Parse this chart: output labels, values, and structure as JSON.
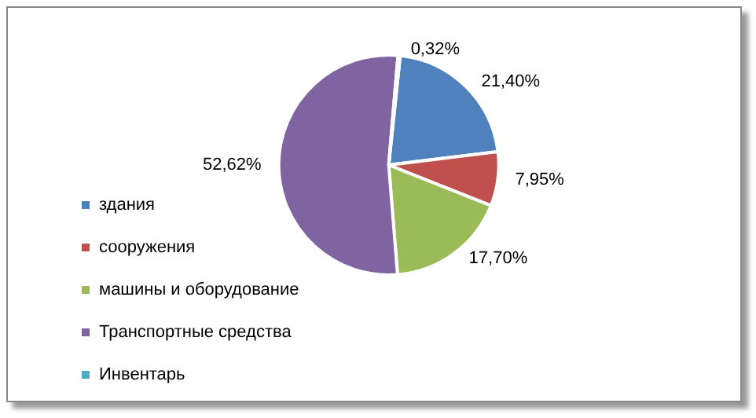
{
  "chart_data": {
    "type": "pie",
    "categories": [
      "здания",
      "сооружения",
      "машины и оборудование",
      "Транспортные средства",
      "Инвентарь"
    ],
    "values": [
      21.4,
      7.95,
      17.7,
      52.62,
      0.32
    ],
    "value_labels": [
      "21,40%",
      "7,95%",
      "17,70%",
      "52,62%",
      "0,32%"
    ],
    "colors": [
      "#4f81bd",
      "#c0504d",
      "#9bbb59",
      "#8064a2",
      "#4bacc6"
    ],
    "legend": "bottom left"
  }
}
